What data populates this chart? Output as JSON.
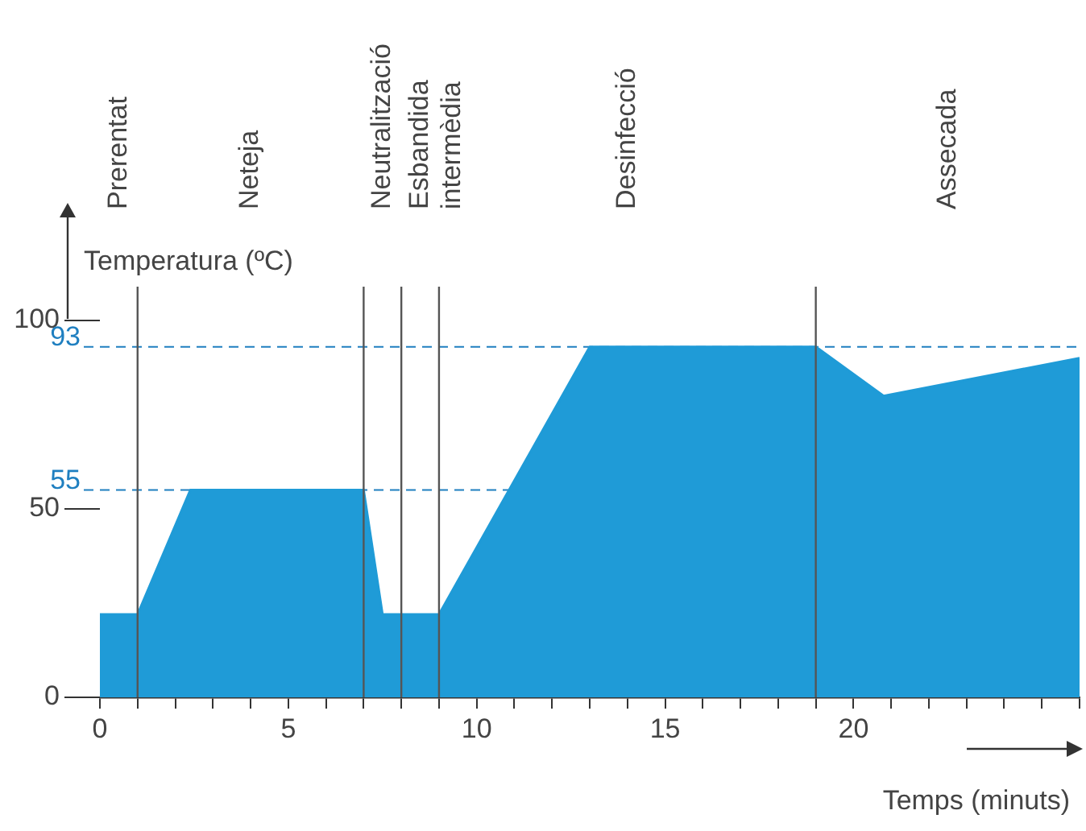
{
  "chart_data": {
    "type": "area",
    "xlabel": "Temps (minuts)",
    "ylabel": "Temperatura (ºC)",
    "x": [
      0,
      1,
      2.4,
      7,
      7.5,
      9,
      13,
      19,
      20.8,
      26
    ],
    "series": [
      {
        "color": "#1f9bd7",
        "values": [
          22,
          22,
          55,
          55,
          22,
          22,
          93,
          93,
          80,
          90
        ]
      }
    ],
    "xlim": [
      0,
      26
    ],
    "xticks": [
      0,
      {
        "value": 1,
        "label": null
      },
      {
        "value": 2,
        "label": null
      },
      {
        "value": 3,
        "label": null
      },
      {
        "value": 4,
        "label": null
      },
      5,
      {
        "value": 6,
        "label": null
      },
      {
        "value": 7,
        "label": null
      },
      {
        "value": 8,
        "label": null
      },
      {
        "value": 9,
        "label": null
      },
      10,
      {
        "value": 11,
        "label": null
      },
      {
        "value": 12,
        "label": null
      },
      {
        "value": 13,
        "label": null
      },
      {
        "value": 14,
        "label": null
      },
      15,
      {
        "value": 16,
        "label": null
      },
      {
        "value": 17,
        "label": null
      },
      {
        "value": 18,
        "label": null
      },
      {
        "value": 19,
        "label": null
      },
      20,
      {
        "value": 21,
        "label": null
      },
      {
        "value": 22,
        "label": null
      },
      {
        "value": 23,
        "label": null
      },
      {
        "value": 24,
        "label": null
      },
      {
        "value": 25,
        "label": null
      },
      {
        "value": 26,
        "label": null
      }
    ],
    "ylim": [
      0,
      100
    ],
    "yticks": [
      0,
      50,
      100
    ],
    "ref_lines": [
      {
        "axis": "y",
        "value": 93,
        "label": "93",
        "color": "#1f7fc0",
        "line_style": "dashed"
      },
      {
        "axis": "y",
        "value": 55,
        "label": "55",
        "color": "#1f7fc0",
        "line_style": "dashed"
      },
      {
        "axis": "x",
        "value": 1,
        "color": "#555555",
        "line_style": "solid"
      },
      {
        "axis": "x",
        "value": 7,
        "color": "#555555",
        "line_style": "solid"
      },
      {
        "axis": "x",
        "value": 8,
        "color": "#555555",
        "line_style": "solid"
      },
      {
        "axis": "x",
        "value": 9,
        "color": "#555555",
        "line_style": "solid"
      },
      {
        "axis": "x",
        "value": 19,
        "color": "#555555",
        "line_style": "solid"
      }
    ],
    "annotations": [
      "Prerentat",
      "Neteja",
      "Neutralització",
      "Esbandida\nintermèdia",
      "Desinfecció",
      "Assecada"
    ],
    "grid": false,
    "legend": false
  }
}
